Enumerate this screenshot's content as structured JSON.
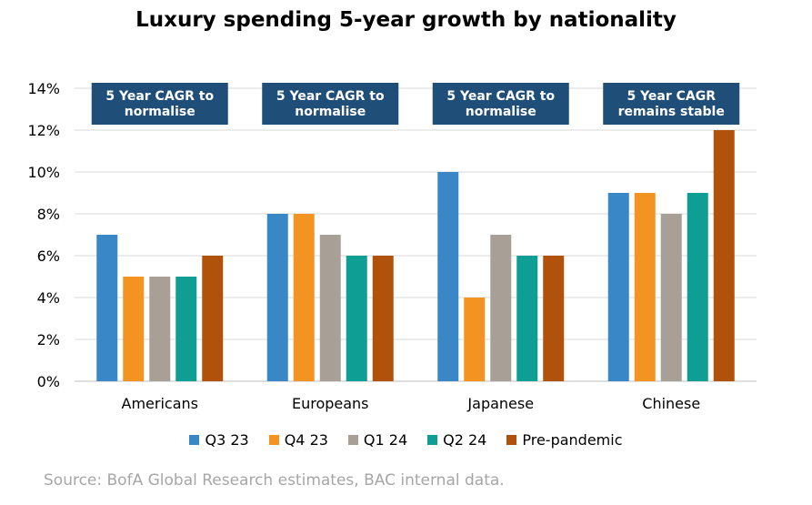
{
  "chart_data": {
    "type": "bar",
    "title": "Luxury spending 5-year growth by nationality",
    "categories": [
      "Americans",
      "Europeans",
      "Japanese",
      "Chinese"
    ],
    "series": [
      {
        "name": "Q3 23",
        "color": "#3a87c8",
        "values": [
          7,
          8,
          10,
          9
        ]
      },
      {
        "name": "Q4 23",
        "color": "#f39422",
        "values": [
          5,
          8,
          4,
          9
        ]
      },
      {
        "name": "Q1 24",
        "color": "#a8a097",
        "values": [
          5,
          7,
          7,
          8
        ]
      },
      {
        "name": "Q2 24",
        "color": "#0f9e93",
        "values": [
          5,
          6,
          6,
          9
        ]
      },
      {
        "name": "Pre-pandemic",
        "color": "#b0520b",
        "values": [
          6,
          6,
          6,
          12
        ]
      }
    ],
    "ylim": [
      0,
      14
    ],
    "yticks": [
      "0%",
      "2%",
      "4%",
      "6%",
      "8%",
      "10%",
      "12%",
      "14%"
    ],
    "grid": true,
    "legend_position": "bottom",
    "annotations": [
      {
        "category": "Americans",
        "text": [
          "5 Year CAGR  to",
          "normalise"
        ]
      },
      {
        "category": "Europeans",
        "text": [
          "5 Year CAGR  to",
          "normalise"
        ]
      },
      {
        "category": "Japanese",
        "text": [
          "5 Year CAGR  to",
          "normalise"
        ]
      },
      {
        "category": "Chinese",
        "text": [
          "5 Year CAGR",
          "remains stable"
        ]
      }
    ],
    "annotation_color": "#1f4e79"
  },
  "source": "Source: BofA Global Research estimates, BAC internal data."
}
